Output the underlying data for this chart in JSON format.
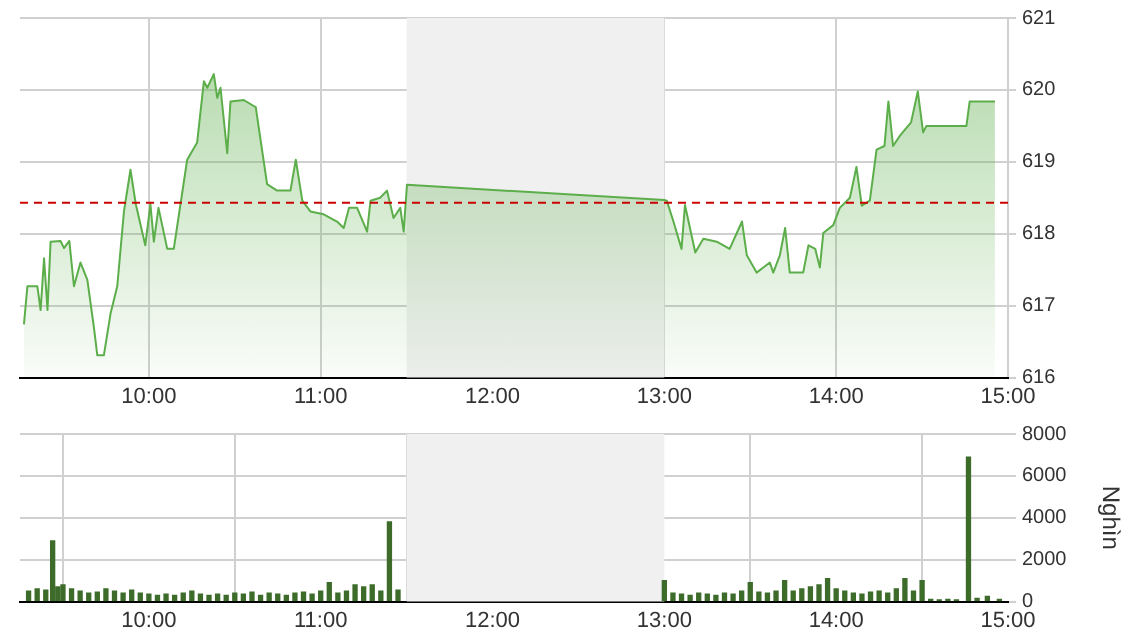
{
  "chart_data": [
    {
      "type": "area",
      "marker": "none",
      "grid": true,
      "x": [
        9.273,
        9.293,
        9.351,
        9.37,
        9.39,
        9.41,
        9.428,
        9.486,
        9.506,
        9.537,
        9.564,
        9.602,
        9.642,
        9.68,
        9.7,
        9.738,
        9.777,
        9.816,
        9.855,
        9.893,
        9.924,
        9.979,
        10.009,
        10.029,
        10.056,
        10.107,
        10.145,
        10.184,
        10.223,
        10.281,
        10.32,
        10.34,
        10.378,
        10.398,
        10.417,
        10.456,
        10.475,
        10.552,
        10.622,
        10.688,
        10.746,
        10.824,
        10.855,
        10.893,
        10.94,
        11.017,
        11.095,
        11.134,
        11.165,
        11.212,
        11.27,
        11.29,
        11.346,
        11.386,
        11.424,
        11.463,
        11.483,
        11.502,
        13.0,
        13.014,
        13.053,
        13.1,
        13.12,
        13.18,
        13.227,
        13.305,
        13.38,
        13.452,
        13.48,
        13.537,
        13.614,
        13.634,
        13.672,
        13.703,
        13.73,
        13.808,
        13.839,
        13.878,
        13.905,
        13.925,
        13.983,
        14.021,
        14.08,
        14.118,
        14.149,
        14.196,
        14.235,
        14.281,
        14.304,
        14.331,
        14.37,
        14.436,
        14.475,
        14.506,
        14.525,
        14.758,
        14.777,
        14.924
      ],
      "series": [
        {
          "color": "#5cae4a",
          "values": [
            616.74,
            617.27,
            617.27,
            616.94,
            617.66,
            616.94,
            617.89,
            617.9,
            617.8,
            617.9,
            617.27,
            617.6,
            617.36,
            616.7,
            616.31,
            616.31,
            616.89,
            617.27,
            618.31,
            618.89,
            618.41,
            617.84,
            618.41,
            617.89,
            618.36,
            617.79,
            617.79,
            618.41,
            619.03,
            619.27,
            620.12,
            620.03,
            620.22,
            619.89,
            620.03,
            619.12,
            619.84,
            619.86,
            619.76,
            618.69,
            618.6,
            618.6,
            619.03,
            618.46,
            618.31,
            618.27,
            618.17,
            618.08,
            618.36,
            618.36,
            618.03,
            618.46,
            618.5,
            618.6,
            618.22,
            618.36,
            618.03,
            618.68,
            618.47,
            618.46,
            618.17,
            617.79,
            618.4,
            617.74,
            617.93,
            617.89,
            617.79,
            618.17,
            617.7,
            617.46,
            617.6,
            617.46,
            617.7,
            618.08,
            617.46,
            617.46,
            617.84,
            617.79,
            617.53,
            618.01,
            618.12,
            618.36,
            618.5,
            618.93,
            618.39,
            618.46,
            619.17,
            619.22,
            619.84,
            619.22,
            619.36,
            619.55,
            619.98,
            619.41,
            619.5,
            619.5,
            619.84,
            619.84
          ]
        }
      ],
      "xlim": [
        9.25,
        15.0
      ],
      "xticks": [
        {
          "value": 10,
          "label": "10:00"
        },
        {
          "value": 11,
          "label": "11:00"
        },
        {
          "value": 12,
          "label": "12:00"
        },
        {
          "value": 13,
          "label": "13:00"
        },
        {
          "value": 14,
          "label": "14:00"
        },
        {
          "value": 15,
          "label": "15:00"
        }
      ],
      "ylim": [
        616,
        621
      ],
      "yticks": [
        616,
        617,
        618,
        619,
        620,
        621
      ],
      "ref_lines": [
        {
          "axis": "y",
          "value": 618.43,
          "color": "#cc0000",
          "line_style": "dashed"
        }
      ],
      "bands": [
        {
          "axis": "x",
          "from": 11.5,
          "to": 13.0,
          "color": "#f0f0f0"
        }
      ]
    },
    {
      "type": "bar",
      "grid": true,
      "ylabel": "Nghìn",
      "x": [
        9.3,
        9.35,
        9.4,
        9.44,
        9.47,
        9.5,
        9.55,
        9.6,
        9.65,
        9.7,
        9.75,
        9.8,
        9.85,
        9.9,
        9.95,
        10.0,
        10.05,
        10.1,
        10.15,
        10.2,
        10.25,
        10.3,
        10.35,
        10.4,
        10.45,
        10.5,
        10.55,
        10.6,
        10.65,
        10.7,
        10.75,
        10.8,
        10.85,
        10.9,
        10.95,
        11.0,
        11.05,
        11.1,
        11.15,
        11.2,
        11.25,
        11.3,
        11.35,
        11.4,
        11.45,
        13.0,
        13.05,
        13.1,
        13.15,
        13.2,
        13.25,
        13.3,
        13.35,
        13.4,
        13.45,
        13.5,
        13.55,
        13.6,
        13.65,
        13.7,
        13.75,
        13.8,
        13.85,
        13.9,
        13.95,
        14.0,
        14.05,
        14.1,
        14.15,
        14.2,
        14.25,
        14.3,
        14.35,
        14.4,
        14.45,
        14.5,
        14.55,
        14.6,
        14.65,
        14.7,
        14.77,
        14.82,
        14.88,
        14.95
      ],
      "series": [
        {
          "color": "#3d6b2a",
          "values": [
            500,
            600,
            550,
            2900,
            700,
            800,
            600,
            500,
            400,
            450,
            600,
            500,
            400,
            550,
            400,
            350,
            300,
            350,
            300,
            400,
            500,
            350,
            300,
            350,
            300,
            400,
            350,
            450,
            300,
            400,
            350,
            300,
            400,
            450,
            350,
            500,
            900,
            400,
            500,
            800,
            700,
            800,
            500,
            3800,
            550,
            1000,
            400,
            350,
            300,
            400,
            350,
            300,
            400,
            350,
            500,
            900,
            450,
            400,
            500,
            1000,
            500,
            600,
            700,
            800,
            1100,
            600,
            500,
            400,
            350,
            450,
            500,
            400,
            600,
            1100,
            500,
            1000,
            100,
            80,
            100,
            80,
            6900,
            150,
            250,
            100
          ]
        }
      ],
      "xlim": [
        9.25,
        15.0
      ],
      "xticks": [
        {
          "value": 10,
          "label": "10:00"
        },
        {
          "value": 11,
          "label": "11:00"
        },
        {
          "value": 12,
          "label": "12:00"
        },
        {
          "value": 13,
          "label": "13:00"
        },
        {
          "value": 14,
          "label": "14:00"
        },
        {
          "value": 15,
          "label": "15:00"
        }
      ],
      "ylim": [
        0,
        8000
      ],
      "yticks": [
        0,
        2000,
        4000,
        6000,
        8000
      ],
      "bands": [
        {
          "axis": "x",
          "from": 11.5,
          "to": 13.0,
          "color": "#f0f0f0"
        }
      ]
    }
  ]
}
